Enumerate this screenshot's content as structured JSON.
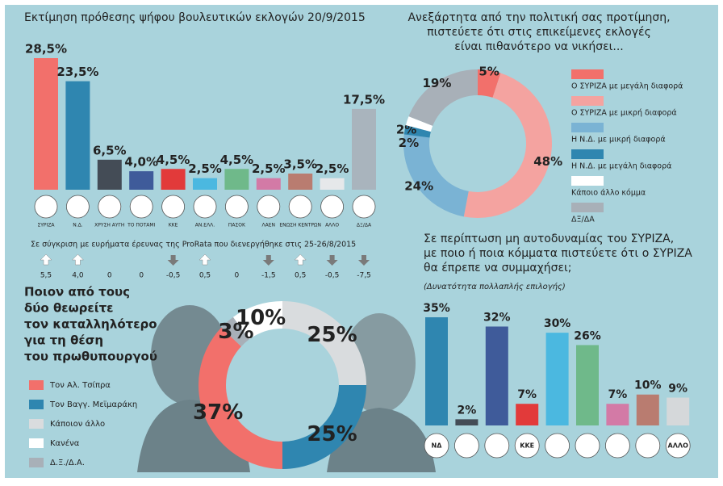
{
  "chart_data": [
    {
      "type": "bar",
      "title": "Εκτίμηση πρόθεσης ψήφου βουλευτικών εκλογών 20/9/2015",
      "categories": [
        "ΣΥΡΙΖΑ",
        "Ν.Δ.",
        "ΧΡΥΣΗ ΑΥΓΗ",
        "ΤΟ ΠΟΤΑΜΙ",
        "ΚΚΕ",
        "ΑΝ.ΕΛΛ.",
        "ΠΑΣΟΚ",
        "ΛΑΕΝ",
        "ΕΝΩΣΗ ΚΕΝΤΡΩΝ",
        "ΑΛΛΟ",
        "ΔΞ/ΔΑ"
      ],
      "values": [
        28.5,
        23.5,
        6.5,
        4.0,
        4.5,
        2.5,
        4.5,
        2.5,
        3.5,
        2.5,
        17.5
      ],
      "value_labels": [
        "28,5%",
        "23,5%",
        "6,5%",
        "4,0%",
        "4,5%",
        "2,5%",
        "4,5%",
        "2,5%",
        "3,5%",
        "2,5%",
        "17,5%"
      ],
      "colors": [
        "#f2706b",
        "#2f86b0",
        "#444c56",
        "#3f5b9a",
        "#e23a3a",
        "#4bb8e0",
        "#6fb98a",
        "#d37aa6",
        "#b97c70",
        "#e6e8ea",
        "#a9b4bd"
      ],
      "comparison_note": "Σε σύγκριση με ευρήματα έρευνας της ProRata που διενεργήθηκε στις 25-26/8/2015",
      "changes": {
        "values": [
          5.5,
          4.0,
          0,
          0,
          -0.5,
          0.5,
          0,
          -1.5,
          0.5,
          -0.5,
          -7.5
        ],
        "value_labels": [
          "5,5",
          "4,0",
          "0",
          "0",
          "-0,5",
          "0,5",
          "0",
          "-1,5",
          "0,5",
          "-0,5",
          "-7,5"
        ]
      }
    },
    {
      "type": "donut",
      "title": [
        "Ανεξάρτητα από την πολιτική σας προτίμηση,",
        "πιστεύετε ότι στις επικείμενες εκλογές",
        "είναι πιθανότερο να νικήσει..."
      ],
      "categories": [
        "Ο ΣΥΡΙΖΑ με μεγάλη διαφορά",
        "Ο ΣΥΡΙΖΑ με μικρή διαφορά",
        "Η Ν.Δ. με μικρή διαφορά",
        "Η Ν.Δ. με μεγάλη διαφορά",
        "Κάποιο άλλο κόμμα",
        "ΔΞ/ΔΑ"
      ],
      "values": [
        5,
        48,
        24,
        2,
        2,
        19
      ],
      "value_labels": [
        "5%",
        "48%",
        "24%",
        "2%",
        "2%",
        "19%"
      ],
      "colors": [
        "#f2706b",
        "#f4a3a0",
        "#7ab3d4",
        "#2f86b0",
        "#ffffff",
        "#a8b0b8"
      ]
    },
    {
      "type": "donut",
      "title": [
        "Ποιον από τους",
        "δύο θεωρείτε",
        "τον καταλληλότερο",
        "για τη θέση",
        "του πρωθυπουργού"
      ],
      "categories": [
        "Τον Αλ. Τσίπρα",
        "Τον Βαγγ. Μεϊμαράκη",
        "Κάποιον άλλο",
        "Κανένα",
        "Δ.Ξ./Δ.Α."
      ],
      "values": [
        37,
        25,
        25,
        10,
        3
      ],
      "value_labels": [
        "37%",
        "25%",
        "25%",
        "10%",
        "3%"
      ],
      "colors": [
        "#f2706b",
        "#2f86b0",
        "#d9dcde",
        "#ffffff",
        "#a8b0b8"
      ]
    },
    {
      "type": "bar",
      "title": [
        "Σε περίπτωση μη αυτοδυναμίας του ΣΥΡΙΖΑ,",
        "με ποιο ή ποια κόμματα πιστεύετε ότι ο ΣΥΡΙΖΑ",
        "θα έπρεπε να συμμαχήσει;"
      ],
      "subtitle": "(Δυνατότητα πολλαπλής επιλογής)",
      "categories": [
        "ΝΔ",
        null,
        null,
        "ΚΚΕ",
        null,
        null,
        null,
        null,
        "ΑΛΛΟ"
      ],
      "values": [
        35,
        2,
        32,
        7,
        30,
        26,
        7,
        10,
        9
      ],
      "value_labels": [
        "35%",
        "2%",
        "32%",
        "7%",
        "30%",
        "26%",
        "7%",
        "10%",
        "9%"
      ],
      "colors": [
        "#2f86b0",
        "#444c56",
        "#3f5b9a",
        "#e23a3a",
        "#4bb8e0",
        "#6fb98a",
        "#d37aa6",
        "#b97c70",
        "#d5d8da"
      ]
    }
  ]
}
